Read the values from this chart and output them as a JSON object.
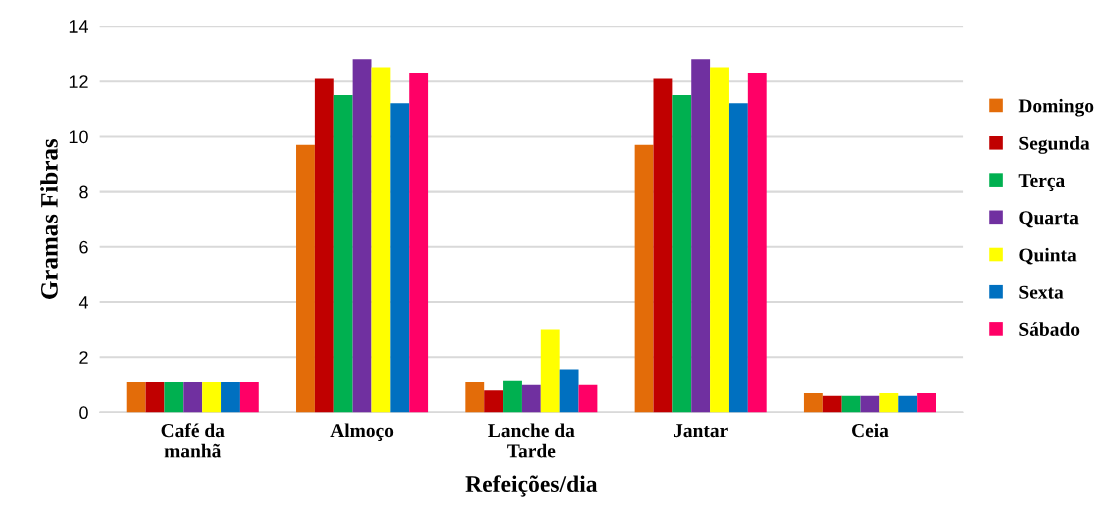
{
  "chart_data": {
    "type": "bar",
    "xlabel": "Refeições/dia",
    "ylabel": "Gramas Fibras",
    "categories": [
      "Café da\nmanhã",
      "Almoço",
      "Lanche da\nTarde",
      "Jantar",
      "Ceia"
    ],
    "series": [
      {
        "name": "Domingo",
        "color": "#e36c09",
        "values": [
          1.1,
          9.7,
          1.1,
          9.7,
          0.7
        ]
      },
      {
        "name": "Segunda",
        "color": "#c00000",
        "values": [
          1.1,
          12.1,
          0.8,
          12.1,
          0.6
        ]
      },
      {
        "name": "Terça",
        "color": "#00b050",
        "values": [
          1.1,
          11.5,
          1.15,
          11.5,
          0.6
        ]
      },
      {
        "name": "Quarta",
        "color": "#7030a0",
        "values": [
          1.1,
          12.8,
          1.0,
          12.8,
          0.6
        ]
      },
      {
        "name": "Quinta",
        "color": "#ffff00",
        "values": [
          1.1,
          12.5,
          3.0,
          12.5,
          0.7
        ]
      },
      {
        "name": "Sexta",
        "color": "#0070c0",
        "values": [
          1.1,
          11.2,
          1.55,
          11.2,
          0.6
        ]
      },
      {
        "name": "Sábado",
        "color": "#ff0066",
        "values": [
          1.1,
          12.3,
          1.0,
          12.3,
          0.7
        ]
      }
    ],
    "ylim": [
      0,
      14
    ],
    "yticks": [
      0,
      2,
      4,
      6,
      8,
      10,
      12,
      14
    ],
    "grid": "y",
    "legend": "right"
  }
}
